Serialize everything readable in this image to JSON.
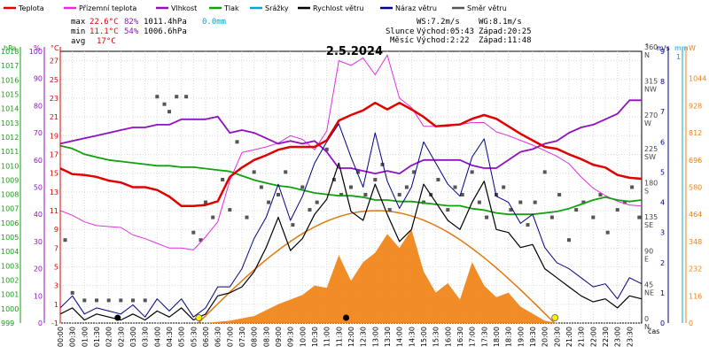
{
  "chart_data": {
    "type": "line",
    "title": "2.5.2024",
    "legend": {
      "items": [
        {
          "label": "Teplota",
          "color": "#e00000"
        },
        {
          "label": "Přízemní teplota",
          "color": "#e030e0"
        },
        {
          "label": "Vlhkost",
          "color": "#9010c0"
        },
        {
          "label": "Tlak",
          "color": "#10a010"
        },
        {
          "label": "Srážky",
          "color": "#10a0d0"
        },
        {
          "label": "Rychlost větru",
          "color": "#000000"
        },
        {
          "label": "Náraz větru",
          "color": "#000080"
        },
        {
          "label": "Směr větru",
          "color": "#555555"
        }
      ],
      "placement": "top"
    },
    "stats": {
      "max_label": "max",
      "max_temp": "22.6°C",
      "max_hum": "82%",
      "max_press": "1011.4hPa",
      "rain": "0.0mm",
      "min_label": "min",
      "min_temp": "11.1°C",
      "min_hum": "54%",
      "min_press": "1006.6hPa",
      "avg_label": "avg",
      "avg_temp": "17°C"
    },
    "sun_moon": {
      "ws": "WS:7.2m/s",
      "wg": "WG:8.1m/s",
      "sun_label": "Slunce",
      "sunrise": "Východ:05:43",
      "sunset": "Západ:20:25",
      "moon_label": "Měsíc",
      "moonrise": "Východ:2:22",
      "moonset": "Západ:11:48"
    },
    "axes": {
      "hpa": {
        "label": "hPa",
        "range": [
          999,
          1018
        ],
        "ticks": [
          "999",
          "1000",
          "1001",
          "1002",
          "1003",
          "1004",
          "1005",
          "1006",
          "1007",
          "1008",
          "1009",
          "1010",
          "1011",
          "1012",
          "1013",
          "1014",
          "1015",
          "1016",
          "1017",
          "1018"
        ]
      },
      "percent": {
        "label": "%",
        "range": [
          0,
          100
        ],
        "ticks": [
          "0",
          "10",
          "20",
          "30",
          "40",
          "50",
          "60",
          "70",
          "80",
          "90",
          "100"
        ]
      },
      "celsius": {
        "label": "°C",
        "range": [
          -1,
          28
        ],
        "ticks": [
          "-1",
          "1",
          "3",
          "5",
          "7",
          "9",
          "11",
          "13",
          "15",
          "17",
          "19",
          "21",
          "23",
          "25",
          "27"
        ]
      },
      "direction": {
        "label": "°",
        "ticks": [
          {
            "deg": "0",
            "name": "N"
          },
          {
            "deg": "45",
            "name": "NE"
          },
          {
            "deg": "90",
            "name": "E"
          },
          {
            "deg": "135",
            "name": "SE"
          },
          {
            "deg": "180",
            "name": "S"
          },
          {
            "deg": "225",
            "name": "SW"
          },
          {
            "deg": "270",
            "name": "W"
          },
          {
            "deg": "315",
            "name": "NW"
          },
          {
            "deg": "360",
            "name": "N"
          }
        ]
      },
      "wind": {
        "label": "m/s",
        "range": [
          0,
          9
        ],
        "ticks": [
          "0",
          "1",
          "2",
          "3",
          "4",
          "5",
          "6",
          "7",
          "8",
          "9"
        ]
      },
      "rain": {
        "label": "mm",
        "ticks": [
          "1"
        ]
      },
      "solar": {
        "label": "W",
        "range": [
          0,
          1160
        ],
        "ticks": [
          "0",
          "116",
          "232",
          "348",
          "464",
          "580",
          "696",
          "812",
          "928",
          "1044"
        ]
      },
      "x": {
        "label": "čas",
        "ticks": [
          "00:00",
          "00:30",
          "01:00",
          "01:30",
          "02:00",
          "02:30",
          "03:00",
          "03:30",
          "04:00",
          "04:30",
          "05:00",
          "05:30",
          "06:00",
          "06:30",
          "07:00",
          "07:30",
          "08:00",
          "08:30",
          "09:00",
          "09:30",
          "10:00",
          "10:30",
          "11:00",
          "11:30",
          "12:00",
          "12:30",
          "13:00",
          "13:30",
          "14:00",
          "14:30",
          "15:00",
          "15:30",
          "16:00",
          "16:30",
          "17:00",
          "17:30",
          "18:00",
          "18:30",
          "19:00",
          "19:30",
          "20:00",
          "20:30",
          "21:00",
          "21:30",
          "22:00",
          "22:30",
          "23:00",
          "23:30"
        ]
      }
    },
    "series": [
      {
        "name": "Teplota",
        "unit": "°C",
        "color": "#e00000",
        "x": [
          0,
          0.5,
          1,
          1.5,
          2,
          2.5,
          3,
          3.5,
          4,
          4.5,
          5,
          5.5,
          6,
          6.5,
          7,
          7.5,
          8,
          8.5,
          9,
          9.5,
          10,
          10.5,
          11,
          11.5,
          12,
          12.5,
          13,
          13.5,
          14,
          14.5,
          15,
          15.5,
          16,
          16.5,
          17,
          17.5,
          18,
          18.5,
          19,
          19.5,
          20,
          20.5,
          21,
          21.5,
          22,
          22.5,
          23,
          23.5,
          24
        ],
        "values": [
          15.5,
          14.9,
          14.8,
          14.6,
          14.2,
          14.0,
          13.5,
          13.5,
          13.2,
          12.5,
          11.5,
          11.5,
          11.6,
          12.0,
          14.6,
          15.6,
          16.4,
          16.9,
          17.5,
          17.8,
          17.8,
          17.8,
          18.5,
          20.6,
          21.2,
          21.7,
          22.5,
          21.8,
          22.5,
          21.8,
          21.0,
          20.0,
          20.1,
          20.2,
          20.8,
          21.2,
          20.8,
          20.0,
          19.2,
          18.5,
          17.8,
          17.6,
          17.0,
          16.5,
          15.9,
          15.6,
          14.8,
          14.5,
          14.4
        ]
      },
      {
        "name": "Přízemní teplota",
        "unit": "°C",
        "color": "#e030e0",
        "x": [
          0,
          0.5,
          1,
          1.5,
          2,
          2.5,
          3,
          3.5,
          4,
          4.5,
          5,
          5.5,
          6,
          6.5,
          7,
          7.5,
          8,
          8.5,
          9,
          9.5,
          10,
          10.5,
          11,
          11.5,
          12,
          12.5,
          13,
          13.5,
          14,
          14.5,
          15,
          15.5,
          16,
          16.5,
          17,
          17.5,
          18,
          18.5,
          19,
          19.5,
          20,
          20.5,
          21,
          21.5,
          22,
          22.5,
          23,
          23.5,
          24
        ],
        "values": [
          11.0,
          10.5,
          9.8,
          9.4,
          9.3,
          9.2,
          8.4,
          8.0,
          7.5,
          7.0,
          7.0,
          6.8,
          8.2,
          9.8,
          14.2,
          17.2,
          17.5,
          17.8,
          18.2,
          19.0,
          18.6,
          17.5,
          19.5,
          27.0,
          26.5,
          27.3,
          25.5,
          27.6,
          23.0,
          22.0,
          20.0,
          20.0,
          20.0,
          20.2,
          20.4,
          20.4,
          19.4,
          19.0,
          18.5,
          18.0,
          17.4,
          16.8,
          16.0,
          14.6,
          13.4,
          12.6,
          12.0,
          11.6,
          11.5
        ]
      },
      {
        "name": "Vlhkost",
        "unit": "%",
        "color": "#9010c0",
        "x": [
          0,
          0.5,
          1,
          1.5,
          2,
          2.5,
          3,
          3.5,
          4,
          4.5,
          5,
          5.5,
          6,
          6.5,
          7,
          7.5,
          8,
          8.5,
          9,
          9.5,
          10,
          10.5,
          11,
          11.5,
          12,
          12.5,
          13,
          13.5,
          14,
          14.5,
          15,
          15.5,
          16,
          16.5,
          17,
          17.5,
          18,
          18.5,
          19,
          19.5,
          20,
          20.5,
          21,
          21.5,
          22,
          22.5,
          23,
          23.5,
          24
        ],
        "values": [
          66,
          67,
          68,
          69,
          70,
          71,
          72,
          72,
          73,
          73,
          75,
          75,
          75,
          76,
          70,
          71,
          70,
          68,
          66,
          67,
          66,
          67,
          63,
          57,
          57,
          56,
          55,
          56,
          55,
          58,
          60,
          60,
          60,
          60,
          58,
          57,
          57,
          60,
          63,
          64,
          66,
          67,
          70,
          72,
          73,
          75,
          77,
          82,
          82
        ]
      },
      {
        "name": "Tlak",
        "unit": "hPa",
        "color": "#10a010",
        "x": [
          0,
          0.5,
          1,
          1.5,
          2,
          2.5,
          3,
          3.5,
          4,
          4.5,
          5,
          5.5,
          6,
          6.5,
          7,
          7.5,
          8,
          8.5,
          9,
          9.5,
          10,
          10.5,
          11,
          11.5,
          12,
          12.5,
          13,
          13.5,
          14,
          14.5,
          15,
          15.5,
          16,
          16.5,
          17,
          17.5,
          18,
          18.5,
          19,
          19.5,
          20,
          20.5,
          21,
          21.5,
          22,
          22.5,
          23,
          23.5,
          24
        ],
        "values": [
          1011.4,
          1011.2,
          1010.8,
          1010.6,
          1010.4,
          1010.3,
          1010.2,
          1010.1,
          1010.0,
          1010.0,
          1009.9,
          1009.9,
          1009.8,
          1009.7,
          1009.6,
          1009.3,
          1009.0,
          1008.8,
          1008.6,
          1008.5,
          1008.3,
          1008.1,
          1008.0,
          1007.9,
          1007.9,
          1007.8,
          1007.6,
          1007.6,
          1007.5,
          1007.5,
          1007.4,
          1007.3,
          1007.2,
          1007.2,
          1007.0,
          1006.9,
          1006.7,
          1006.6,
          1006.6,
          1006.6,
          1006.7,
          1006.8,
          1007.0,
          1007.3,
          1007.6,
          1007.8,
          1007.6,
          1007.5,
          1007.6
        ]
      },
      {
        "name": "Rychlost větru",
        "unit": "m/s",
        "color": "#000000",
        "x": [
          0,
          0.5,
          1,
          1.5,
          2,
          2.5,
          3,
          3.5,
          4,
          4.5,
          5,
          5.5,
          6,
          6.5,
          7,
          7.5,
          8,
          8.5,
          9,
          9.5,
          10,
          10.5,
          11,
          11.5,
          12,
          12.5,
          13,
          13.5,
          14,
          14.5,
          15,
          15.5,
          16,
          16.5,
          17,
          17.5,
          18,
          18.5,
          19,
          19.5,
          20,
          20.5,
          21,
          21.5,
          22,
          22.5,
          23,
          23.5,
          24
        ],
        "values": [
          0.3,
          0.5,
          0.1,
          0.3,
          0.2,
          0.1,
          0.3,
          0.1,
          0.4,
          0.2,
          0.5,
          0.1,
          0.3,
          0.9,
          1.0,
          1.2,
          1.7,
          2.5,
          3.5,
          2.4,
          2.8,
          3.6,
          4.1,
          5.3,
          3.7,
          3.4,
          4.6,
          3.6,
          2.7,
          3.1,
          4.6,
          4.0,
          3.4,
          3.1,
          4.0,
          4.7,
          3.1,
          3.0,
          2.5,
          2.6,
          1.8,
          1.5,
          1.2,
          0.9,
          0.7,
          0.8,
          0.5,
          0.9,
          0.8
        ]
      },
      {
        "name": "Náraz větru",
        "unit": "m/s",
        "color": "#000080",
        "x": [
          0,
          0.5,
          1,
          1.5,
          2,
          2.5,
          3,
          3.5,
          4,
          4.5,
          5,
          5.5,
          6,
          6.5,
          7,
          7.5,
          8,
          8.5,
          9,
          9.5,
          10,
          10.5,
          11,
          11.5,
          12,
          12.5,
          13,
          13.5,
          14,
          14.5,
          15,
          15.5,
          16,
          16.5,
          17,
          17.5,
          18,
          18.5,
          19,
          19.5,
          20,
          20.5,
          21,
          21.5,
          22,
          22.5,
          23,
          23.5,
          24
        ],
        "values": [
          0.5,
          0.9,
          0.3,
          0.5,
          0.4,
          0.3,
          0.6,
          0.2,
          0.8,
          0.4,
          0.8,
          0.2,
          0.5,
          1.2,
          1.2,
          1.8,
          2.8,
          3.5,
          4.6,
          3.4,
          4.2,
          5.3,
          6.0,
          6.6,
          5.5,
          4.5,
          6.3,
          4.7,
          3.8,
          4.5,
          6.0,
          5.3,
          4.6,
          4.2,
          5.5,
          6.1,
          4.2,
          4.0,
          3.3,
          3.6,
          2.5,
          2.0,
          1.8,
          1.5,
          1.2,
          1.3,
          0.8,
          1.5,
          1.3
        ]
      },
      {
        "name": "Směr větru",
        "unit": "°",
        "color": "#555555",
        "x": [
          0.2,
          0.5,
          1.0,
          1.5,
          2.0,
          2.5,
          3.0,
          3.5,
          4.0,
          4.3,
          4.5,
          4.8,
          5.2,
          5.5,
          5.8,
          6.0,
          6.3,
          6.7,
          7.0,
          7.3,
          7.7,
          8.0,
          8.3,
          8.6,
          9.0,
          9.3,
          9.6,
          10.0,
          10.3,
          10.6,
          11.0,
          11.3,
          11.6,
          12.0,
          12.3,
          12.6,
          13.0,
          13.3,
          13.6,
          14.0,
          14.3,
          14.6,
          15.0,
          15.3,
          15.6,
          16.0,
          16.3,
          16.6,
          17.0,
          17.3,
          17.6,
          18.0,
          18.3,
          18.6,
          19.0,
          19.3,
          19.6,
          20.0,
          20.3,
          20.6,
          21.0,
          21.3,
          21.6,
          22.0,
          22.3,
          22.6,
          23.0,
          23.3,
          23.6,
          23.9
        ],
        "values": [
          110,
          40,
          30,
          30,
          30,
          30,
          30,
          30,
          300,
          290,
          280,
          300,
          300,
          120,
          110,
          160,
          140,
          190,
          150,
          240,
          140,
          200,
          180,
          160,
          170,
          200,
          130,
          180,
          150,
          160,
          230,
          190,
          170,
          180,
          200,
          170,
          190,
          210,
          150,
          170,
          180,
          200,
          160,
          170,
          190,
          150,
          180,
          170,
          200,
          160,
          140,
          170,
          180,
          150,
          160,
          130,
          160,
          200,
          140,
          170,
          110,
          150,
          160,
          140,
          170,
          120,
          150,
          160,
          180,
          140
        ]
      }
    ],
    "rain_mm": 0.0,
    "solar_radiation": {
      "unit": "W",
      "x": [
        6.0,
        7.0,
        8.0,
        9.0,
        10.0,
        10.5,
        11.0,
        11.5,
        12.0,
        12.5,
        13.0,
        13.5,
        14.0,
        14.5,
        15.0,
        15.5,
        16.0,
        16.5,
        17.0,
        17.5,
        18.0,
        18.5,
        19.0,
        19.5,
        20.0,
        20.5
      ],
      "values": [
        0,
        10,
        30,
        80,
        120,
        160,
        150,
        290,
        180,
        260,
        300,
        380,
        320,
        400,
        220,
        130,
        170,
        100,
        260,
        160,
        110,
        130,
        70,
        40,
        10,
        0
      ]
    },
    "theoretical_solar": {
      "peak_W": 480,
      "peak_hour": 13.1,
      "start_hour": 5.7,
      "end_hour": 20.4
    },
    "markers": {
      "moonrise_hour": 2.37,
      "moonset_hour": 11.8,
      "sunrise_hour": 5.72,
      "sunset_hour": 20.42
    },
    "grid": true
  }
}
